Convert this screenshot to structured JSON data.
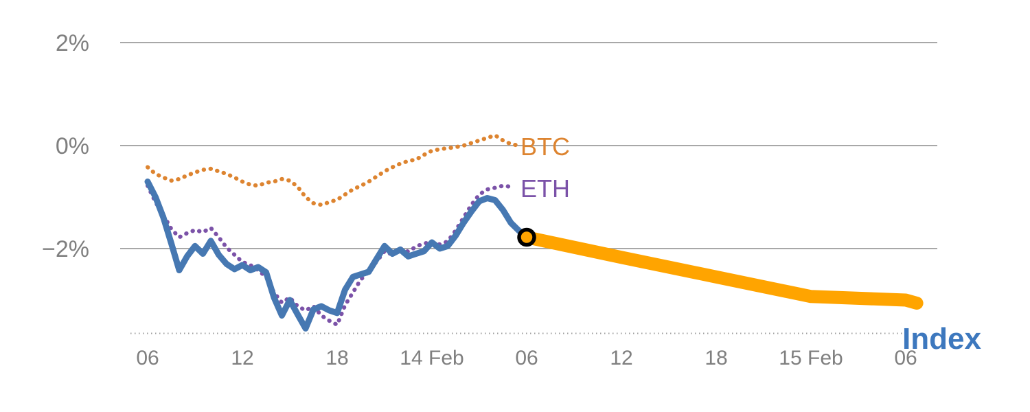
{
  "chart_data": {
    "type": "line",
    "title": "",
    "description": "Crypto performance chart: BTC and ETH dotted percent-change lines, solid Index line, with orange forecast projection and circular marker at forecast start",
    "x_axis": {
      "unit": "hours-since-06:00-13-Feb",
      "tick_hours": [
        0,
        6,
        12,
        18,
        24,
        30,
        36,
        42,
        48
      ],
      "tick_labels": [
        "06",
        "12",
        "18",
        "14 Feb",
        "06",
        "12",
        "18",
        "15 Feb",
        "06"
      ],
      "range": [
        0,
        48.7
      ],
      "grid": false
    },
    "y_axis": {
      "unit": "%",
      "tick_values": [
        2,
        0,
        -2
      ],
      "tick_labels": [
        "2%",
        "0%",
        "−2%"
      ],
      "range": [
        -3.7,
        2.3
      ],
      "grid": true
    },
    "colors": {
      "grid": "#a8a8a8",
      "axis": "#9c9c9c",
      "tick_text": "#7f7f7f",
      "background": "#ffffff"
    },
    "labels": [
      {
        "text": "BTC",
        "color": "#dd8430"
      },
      {
        "text": "ETH",
        "color": "#7b52a8"
      },
      {
        "text": "Index",
        "color": "#3d78be"
      }
    ],
    "series": [
      {
        "name": "BTC",
        "color": "#dd8430",
        "style": "dotted",
        "width": 6,
        "points": [
          [
            0,
            -0.42
          ],
          [
            0.5,
            -0.55
          ],
          [
            1,
            -0.62
          ],
          [
            1.5,
            -0.68
          ],
          [
            2,
            -0.65
          ],
          [
            2.5,
            -0.58
          ],
          [
            3,
            -0.52
          ],
          [
            3.5,
            -0.47
          ],
          [
            4,
            -0.45
          ],
          [
            4.5,
            -0.5
          ],
          [
            5,
            -0.55
          ],
          [
            5.5,
            -0.62
          ],
          [
            6,
            -0.7
          ],
          [
            6.5,
            -0.76
          ],
          [
            7,
            -0.78
          ],
          [
            7.5,
            -0.72
          ],
          [
            8,
            -0.7
          ],
          [
            8.5,
            -0.65
          ],
          [
            9,
            -0.68
          ],
          [
            9.5,
            -0.8
          ],
          [
            10,
            -1.0
          ],
          [
            10.5,
            -1.12
          ],
          [
            11,
            -1.15
          ],
          [
            11.5,
            -1.1
          ],
          [
            12,
            -1.05
          ],
          [
            12.5,
            -0.95
          ],
          [
            13,
            -0.85
          ],
          [
            13.5,
            -0.78
          ],
          [
            14,
            -0.7
          ],
          [
            14.5,
            -0.6
          ],
          [
            15,
            -0.5
          ],
          [
            15.5,
            -0.42
          ],
          [
            16,
            -0.35
          ],
          [
            16.5,
            -0.3
          ],
          [
            17,
            -0.27
          ],
          [
            17.5,
            -0.18
          ],
          [
            18,
            -0.1
          ],
          [
            18.5,
            -0.07
          ],
          [
            19,
            -0.05
          ],
          [
            19.5,
            -0.03
          ],
          [
            20,
            0.0
          ],
          [
            20.5,
            0.05
          ],
          [
            21,
            0.1
          ],
          [
            21.5,
            0.15
          ],
          [
            22,
            0.2
          ],
          [
            22.5,
            0.1
          ],
          [
            23,
            0.03
          ],
          [
            23.5,
            0.0
          ]
        ]
      },
      {
        "name": "ETH",
        "color": "#7b52a8",
        "style": "dotted",
        "width": 6,
        "points": [
          [
            0,
            -0.78
          ],
          [
            0.5,
            -1.1
          ],
          [
            1,
            -1.35
          ],
          [
            1.5,
            -1.62
          ],
          [
            2,
            -1.78
          ],
          [
            2.5,
            -1.7
          ],
          [
            3,
            -1.64
          ],
          [
            3.5,
            -1.68
          ],
          [
            4,
            -1.6
          ],
          [
            4.5,
            -1.78
          ],
          [
            5,
            -1.98
          ],
          [
            5.5,
            -2.12
          ],
          [
            6,
            -2.26
          ],
          [
            6.5,
            -2.32
          ],
          [
            7,
            -2.42
          ],
          [
            7.5,
            -2.55
          ],
          [
            8,
            -2.85
          ],
          [
            8.5,
            -3.05
          ],
          [
            9,
            -2.95
          ],
          [
            9.5,
            -3.12
          ],
          [
            10,
            -3.2
          ],
          [
            10.5,
            -3.12
          ],
          [
            11,
            -3.3
          ],
          [
            11.5,
            -3.4
          ],
          [
            12,
            -3.48
          ],
          [
            12.5,
            -3.1
          ],
          [
            13,
            -2.85
          ],
          [
            13.5,
            -2.6
          ],
          [
            14,
            -2.45
          ],
          [
            14.5,
            -2.25
          ],
          [
            15,
            -2.05
          ],
          [
            15.5,
            -2.12
          ],
          [
            16,
            -2.0
          ],
          [
            16.5,
            -2.06
          ],
          [
            17,
            -1.96
          ],
          [
            17.5,
            -1.9
          ],
          [
            18,
            -1.88
          ],
          [
            18.5,
            -1.92
          ],
          [
            19,
            -1.86
          ],
          [
            19.5,
            -1.65
          ],
          [
            20,
            -1.4
          ],
          [
            20.5,
            -1.15
          ],
          [
            21,
            -0.95
          ],
          [
            21.5,
            -0.85
          ],
          [
            22,
            -0.82
          ],
          [
            22.5,
            -0.78
          ],
          [
            23,
            -0.8
          ]
        ]
      },
      {
        "name": "Index-forecast",
        "color": "#ffa400",
        "style": "solid",
        "width": 19,
        "points": [
          [
            24,
            -1.78
          ],
          [
            30,
            -2.17
          ],
          [
            36,
            -2.55
          ],
          [
            42,
            -2.93
          ],
          [
            48,
            -3.0
          ],
          [
            48.7,
            -3.06
          ]
        ]
      },
      {
        "name": "Index",
        "color": "#4678b2",
        "style": "solid",
        "width": 9,
        "points": [
          [
            0,
            -0.7
          ],
          [
            0.5,
            -1.0
          ],
          [
            1,
            -1.4
          ],
          [
            1.5,
            -1.9
          ],
          [
            2,
            -2.42
          ],
          [
            2.5,
            -2.15
          ],
          [
            3,
            -1.95
          ],
          [
            3.5,
            -2.1
          ],
          [
            4,
            -1.85
          ],
          [
            4.5,
            -2.12
          ],
          [
            5,
            -2.3
          ],
          [
            5.5,
            -2.4
          ],
          [
            6,
            -2.32
          ],
          [
            6.5,
            -2.42
          ],
          [
            7,
            -2.36
          ],
          [
            7.5,
            -2.46
          ],
          [
            8,
            -2.95
          ],
          [
            8.5,
            -3.3
          ],
          [
            9,
            -3.0
          ],
          [
            9.5,
            -3.28
          ],
          [
            10,
            -3.55
          ],
          [
            10.5,
            -3.18
          ],
          [
            11,
            -3.12
          ],
          [
            11.5,
            -3.2
          ],
          [
            12,
            -3.25
          ],
          [
            12.5,
            -2.8
          ],
          [
            13,
            -2.55
          ],
          [
            13.5,
            -2.5
          ],
          [
            14,
            -2.45
          ],
          [
            14.5,
            -2.2
          ],
          [
            15,
            -1.95
          ],
          [
            15.5,
            -2.1
          ],
          [
            16,
            -2.02
          ],
          [
            16.5,
            -2.15
          ],
          [
            17,
            -2.1
          ],
          [
            17.5,
            -2.05
          ],
          [
            18,
            -1.88
          ],
          [
            18.5,
            -2.0
          ],
          [
            19,
            -1.95
          ],
          [
            19.5,
            -1.75
          ],
          [
            20,
            -1.5
          ],
          [
            20.5,
            -1.28
          ],
          [
            21,
            -1.08
          ],
          [
            21.5,
            -1.02
          ],
          [
            22,
            -1.06
          ],
          [
            22.5,
            -1.25
          ],
          [
            23,
            -1.5
          ],
          [
            23.5,
            -1.65
          ],
          [
            24,
            -1.78
          ]
        ]
      }
    ],
    "marker": {
      "x": 24,
      "y": -1.78,
      "fill": "#ffa400",
      "stroke": "#000000"
    }
  }
}
